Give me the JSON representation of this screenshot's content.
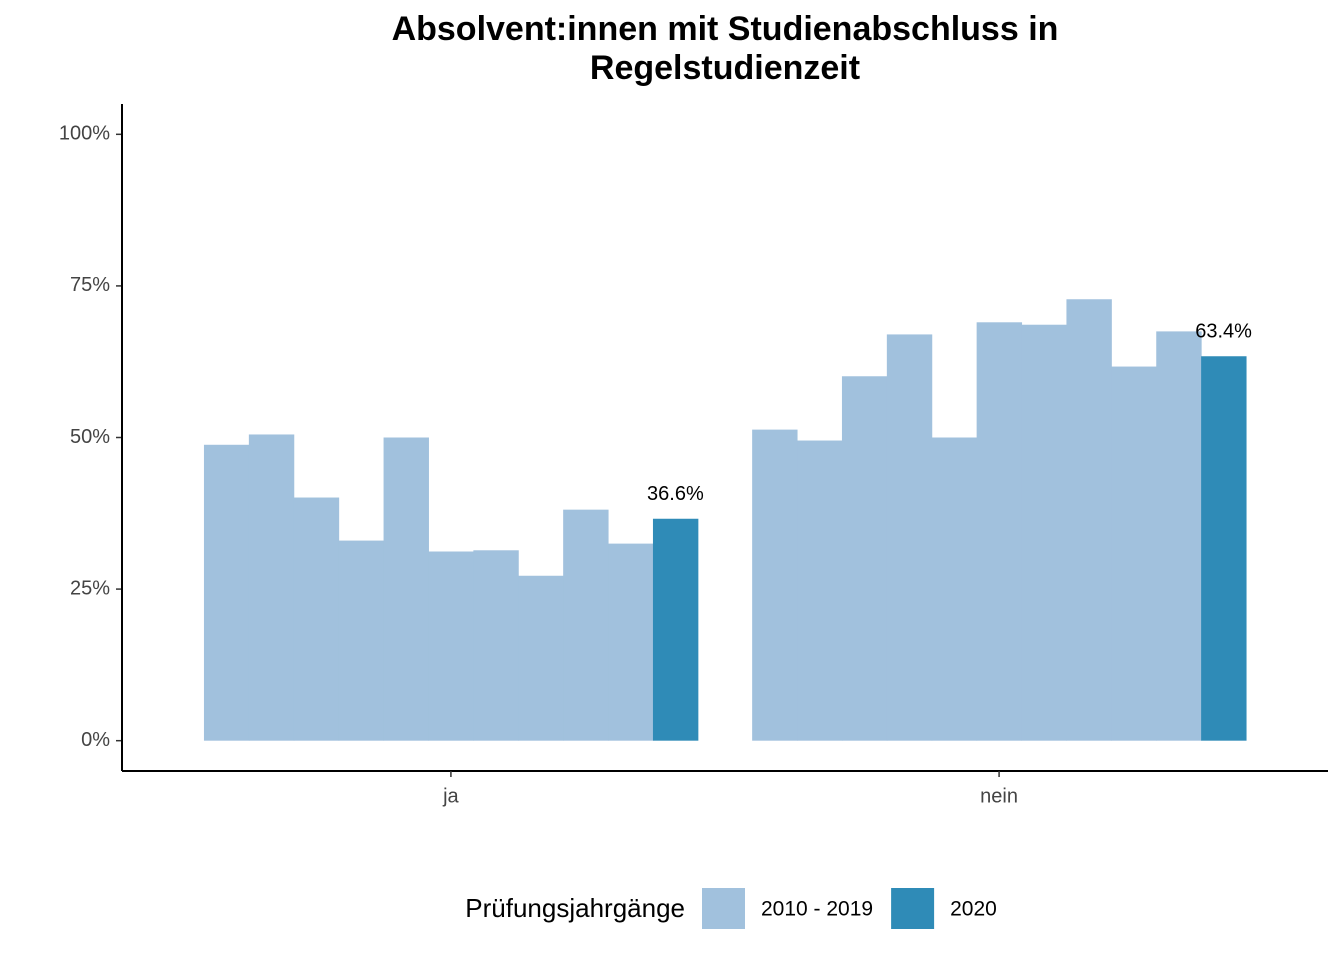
{
  "chart_data": {
    "type": "bar",
    "title": [
      "Absolvent:innen mit Studienabschluss in",
      "Regelstudienzeit"
    ],
    "categories": [
      "ja",
      "nein"
    ],
    "series": [
      {
        "name": "2010 - 2019",
        "color": "#a1c1dd",
        "values": [
          [
            48.8,
            50.5,
            40.1,
            33.0,
            50.0,
            31.2,
            31.4,
            27.2,
            38.1,
            32.5
          ],
          [
            51.3,
            49.5,
            60.1,
            67.0,
            50.0,
            69.0,
            68.6,
            72.8,
            61.7,
            67.5
          ]
        ]
      },
      {
        "name": "2020",
        "color": "#2f8bb7",
        "values": [
          36.6,
          63.4
        ],
        "value_labels": [
          "36.6%",
          "63.4%"
        ]
      }
    ],
    "legend_title": "Prüfungsjahrgänge",
    "legend": "bottom",
    "ylim": [
      -5,
      105
    ],
    "yticks": [
      {
        "value": 0,
        "label": "0%"
      },
      {
        "value": 25,
        "label": "25%"
      },
      {
        "value": 50,
        "label": "50%"
      },
      {
        "value": 75,
        "label": "75%"
      },
      {
        "value": 100,
        "label": "100%"
      }
    ]
  }
}
